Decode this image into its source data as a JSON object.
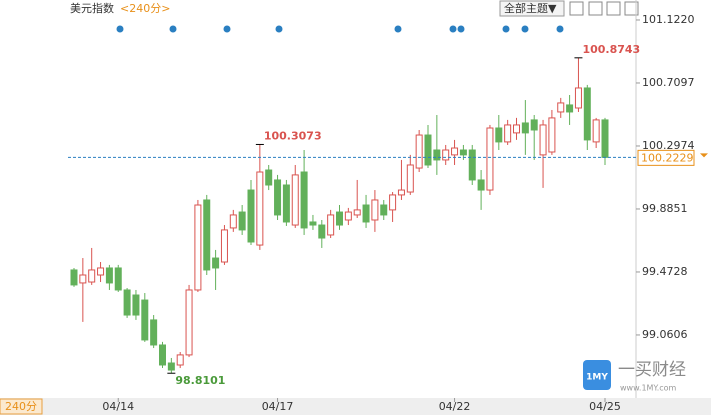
{
  "chart_data": {
    "type": "candlestick",
    "title": "美元指数",
    "subtitle": "<240分>",
    "theme_button": "全部主题▼",
    "period_button": "240分",
    "logo_name": "一买财经",
    "logo_url": "www.1MY.com",
    "up_color": "#d9534f",
    "down_color": "#62b05a",
    "ylim": [
      98.648,
      101.22
    ],
    "yticks": [
      99.0606,
      99.4728,
      99.8851,
      100.2974,
      100.7097,
      {
        "value": 101.122,
        "label": "101.1220"
      }
    ],
    "categories": [
      null,
      null,
      null,
      null,
      null,
      "04/14",
      null,
      null,
      null,
      null,
      null,
      null,
      null,
      null,
      null,
      null,
      null,
      null,
      null,
      null,
      null,
      null,
      null,
      "04/17",
      null,
      null,
      null,
      null,
      null,
      null,
      null,
      null,
      null,
      null,
      null,
      null,
      null,
      null,
      null,
      null,
      null,
      null,
      null,
      "04/22",
      null,
      null,
      null,
      null,
      null,
      null,
      null,
      null,
      null,
      null,
      null,
      null,
      null,
      null,
      null,
      null,
      "04/25"
    ],
    "open": [
      99.486,
      99.401,
      99.407,
      99.453,
      99.499,
      99.499,
      99.355,
      99.322,
      99.289,
      99.159,
      98.995,
      98.877,
      98.864,
      98.93,
      99.355,
      99.944,
      99.564,
      99.538,
      99.761,
      99.865,
      100.009,
      99.649,
      100.14,
      100.075,
      100.042,
      99.78,
      100.127,
      99.8,
      99.78,
      99.715,
      99.865,
      99.813,
      99.846,
      99.911,
      99.813,
      99.911,
      99.879,
      99.977,
      99.996,
      100.153,
      100.369,
      100.271,
      100.206,
      100.239,
      100.271,
      100.271,
      100.075,
      100.009,
      100.415,
      100.324,
      100.383,
      100.448,
      100.468,
      100.239,
      100.258,
      100.52,
      100.566,
      100.546,
      100.677,
      100.324,
      100.468
    ],
    "high": [
      99.499,
      99.564,
      99.63,
      99.538,
      99.519,
      99.519,
      99.368,
      99.355,
      99.335,
      99.191,
      99.015,
      98.91,
      98.949,
      99.388,
      99.944,
      99.977,
      99.617,
      99.78,
      99.879,
      99.911,
      100.075,
      100.3073,
      100.173,
      100.108,
      100.075,
      100.173,
      100.271,
      99.846,
      99.813,
      99.879,
      99.911,
      99.892,
      100.075,
      99.977,
      100.009,
      99.944,
      99.996,
      100.206,
      100.239,
      100.402,
      100.435,
      100.5,
      100.304,
      100.337,
      100.304,
      100.304,
      100.14,
      100.435,
      100.5,
      100.468,
      100.481,
      100.598,
      100.5,
      100.468,
      100.533,
      100.612,
      100.631,
      100.8743,
      100.697,
      100.481,
      100.481
    ],
    "low": [
      99.375,
      99.146,
      99.388,
      99.407,
      99.355,
      99.342,
      99.172,
      99.159,
      99.015,
      98.975,
      98.844,
      98.8101,
      98.844,
      98.916,
      99.342,
      99.453,
      99.355,
      99.519,
      99.735,
      99.715,
      99.649,
      99.617,
      100.009,
      99.813,
      99.774,
      99.761,
      99.715,
      99.748,
      99.63,
      99.695,
      99.748,
      99.78,
      99.826,
      99.761,
      99.735,
      99.813,
      99.8,
      99.944,
      99.977,
      100.127,
      100.153,
      100.108,
      100.173,
      100.173,
      100.206,
      100.042,
      99.879,
      99.977,
      100.271,
      100.304,
      100.337,
      100.239,
      100.206,
      100.023,
      100.239,
      100.481,
      100.435,
      100.52,
      100.271,
      100.284,
      100.173
    ],
    "close": [
      99.388,
      99.453,
      99.486,
      99.499,
      99.401,
      99.355,
      99.191,
      99.191,
      99.028,
      98.995,
      98.864,
      98.831,
      98.93,
      99.355,
      99.911,
      99.486,
      99.499,
      99.748,
      99.846,
      99.748,
      99.669,
      100.127,
      100.042,
      99.846,
      99.8,
      100.108,
      99.761,
      99.78,
      99.695,
      99.846,
      99.78,
      99.865,
      99.879,
      99.8,
      99.944,
      99.846,
      99.977,
      100.009,
      100.173,
      100.369,
      100.173,
      100.206,
      100.271,
      100.284,
      100.239,
      100.075,
      100.009,
      100.415,
      100.324,
      100.435,
      100.435,
      100.383,
      100.402,
      100.435,
      100.481,
      100.579,
      100.52,
      100.677,
      100.337,
      100.468,
      100.2229
    ]
  }
}
